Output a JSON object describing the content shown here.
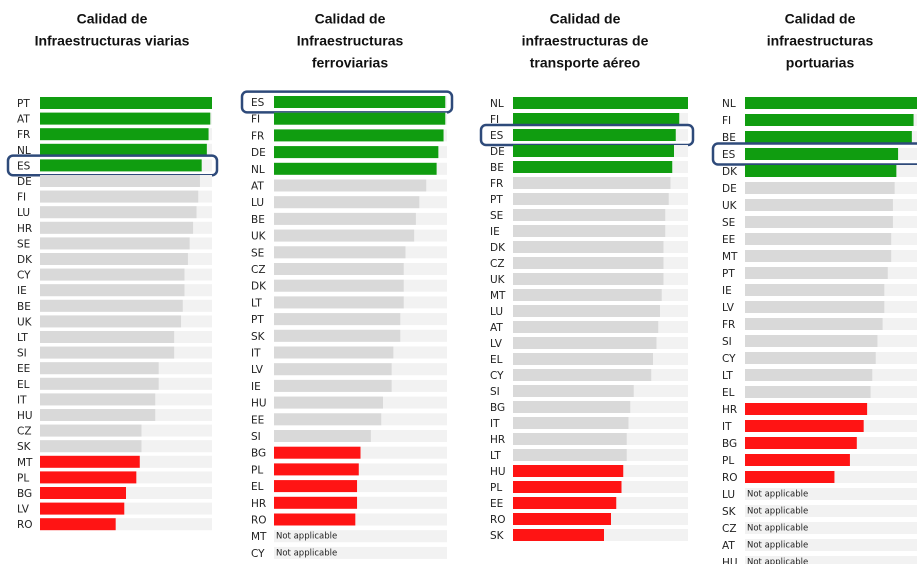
{
  "chart_data": [
    {
      "type": "bar",
      "orientation": "horizontal",
      "title": [
        "Calidad de",
        "Infraestructuras viarias"
      ],
      "categories": [
        "PT",
        "AT",
        "FR",
        "NL",
        "ES",
        "DE",
        "FI",
        "LU",
        "HR",
        "SE",
        "DK",
        "CY",
        "IE",
        "BE",
        "UK",
        "LT",
        "SI",
        "EE",
        "EL",
        "IT",
        "HU",
        "CZ",
        "SK",
        "MT",
        "PL",
        "BG",
        "LV",
        "RO"
      ],
      "values": [
        100,
        99,
        98,
        97,
        94,
        93,
        92,
        91,
        89,
        87,
        86,
        84,
        84,
        83,
        82,
        78,
        78,
        69,
        69,
        67,
        67,
        59,
        59,
        58,
        56,
        50,
        49,
        44
      ],
      "colors": [
        "#109d10",
        "#109d10",
        "#109d10",
        "#109d10",
        "#109d10",
        "#d9d9d9",
        "#d9d9d9",
        "#d9d9d9",
        "#d9d9d9",
        "#d9d9d9",
        "#d9d9d9",
        "#d9d9d9",
        "#d9d9d9",
        "#d9d9d9",
        "#d9d9d9",
        "#d9d9d9",
        "#d9d9d9",
        "#d9d9d9",
        "#d9d9d9",
        "#d9d9d9",
        "#d9d9d9",
        "#d9d9d9",
        "#d9d9d9",
        "#ff1414",
        "#ff1414",
        "#ff1414",
        "#ff1414",
        "#ff1414"
      ],
      "xlim": [
        0,
        100
      ],
      "highlight": "ES"
    },
    {
      "type": "bar",
      "orientation": "horizontal",
      "title": [
        "Calidad de",
        "Infraestructuras",
        "ferroviarias"
      ],
      "categories": [
        "ES",
        "FI",
        "FR",
        "DE",
        "NL",
        "AT",
        "LU",
        "BE",
        "UK",
        "SE",
        "CZ",
        "DK",
        "LT",
        "PT",
        "SK",
        "IT",
        "LV",
        "IE",
        "HU",
        "EE",
        "SI",
        "BG",
        "PL",
        "EL",
        "HR",
        "RO",
        "MT",
        "CY"
      ],
      "values": [
        99,
        99,
        98,
        95,
        94,
        88,
        84,
        82,
        81,
        76,
        75,
        75,
        75,
        73,
        73,
        69,
        68,
        68,
        63,
        62,
        56,
        50,
        49,
        48,
        48,
        47,
        null,
        null
      ],
      "value_labels": [
        null,
        null,
        null,
        null,
        null,
        null,
        null,
        null,
        null,
        null,
        null,
        null,
        null,
        null,
        null,
        null,
        null,
        null,
        null,
        null,
        null,
        null,
        null,
        null,
        null,
        null,
        "Not applicable",
        "Not applicable"
      ],
      "colors": [
        "#109d10",
        "#109d10",
        "#109d10",
        "#109d10",
        "#109d10",
        "#d9d9d9",
        "#d9d9d9",
        "#d9d9d9",
        "#d9d9d9",
        "#d9d9d9",
        "#d9d9d9",
        "#d9d9d9",
        "#d9d9d9",
        "#d9d9d9",
        "#d9d9d9",
        "#d9d9d9",
        "#d9d9d9",
        "#d9d9d9",
        "#d9d9d9",
        "#d9d9d9",
        "#d9d9d9",
        "#ff1414",
        "#ff1414",
        "#ff1414",
        "#ff1414",
        "#ff1414",
        "#d9d9d9",
        "#d9d9d9"
      ],
      "xlim": [
        0,
        100
      ],
      "highlight": "ES"
    },
    {
      "type": "bar",
      "orientation": "horizontal",
      "title": [
        "Calidad de",
        "infraestructuras de",
        "transporte aéreo"
      ],
      "categories": [
        "NL",
        "FI",
        "ES",
        "DE",
        "BE",
        "FR",
        "PT",
        "SE",
        "IE",
        "DK",
        "CZ",
        "UK",
        "MT",
        "LU",
        "AT",
        "LV",
        "EL",
        "CY",
        "SI",
        "BG",
        "IT",
        "HR",
        "LT",
        "HU",
        "PL",
        "EE",
        "RO",
        "SK"
      ],
      "values": [
        100,
        95,
        93,
        92,
        91,
        90,
        89,
        87,
        87,
        86,
        86,
        86,
        85,
        84,
        83,
        82,
        80,
        79,
        69,
        67,
        66,
        65,
        65,
        63,
        62,
        59,
        56,
        52
      ],
      "colors": [
        "#109d10",
        "#109d10",
        "#109d10",
        "#109d10",
        "#109d10",
        "#d9d9d9",
        "#d9d9d9",
        "#d9d9d9",
        "#d9d9d9",
        "#d9d9d9",
        "#d9d9d9",
        "#d9d9d9",
        "#d9d9d9",
        "#d9d9d9",
        "#d9d9d9",
        "#d9d9d9",
        "#d9d9d9",
        "#d9d9d9",
        "#d9d9d9",
        "#d9d9d9",
        "#d9d9d9",
        "#d9d9d9",
        "#d9d9d9",
        "#ff1414",
        "#ff1414",
        "#ff1414",
        "#ff1414",
        "#ff1414"
      ],
      "xlim": [
        0,
        100
      ],
      "highlight": "ES"
    },
    {
      "type": "bar",
      "orientation": "horizontal",
      "title": [
        "Calidad de",
        "infraestructuras",
        "portuarias"
      ],
      "categories": [
        "NL",
        "FI",
        "BE",
        "ES",
        "DK",
        "DE",
        "UK",
        "SE",
        "EE",
        "MT",
        "PT",
        "IE",
        "LV",
        "FR",
        "SI",
        "CY",
        "LT",
        "EL",
        "HR",
        "IT",
        "BG",
        "PL",
        "RO",
        "LU",
        "SK",
        "CZ",
        "AT",
        "HU"
      ],
      "values": [
        100,
        98,
        97,
        89,
        88,
        87,
        86,
        86,
        85,
        85,
        83,
        81,
        81,
        80,
        77,
        76,
        74,
        73,
        71,
        69,
        65,
        61,
        52,
        null,
        null,
        null,
        null,
        null
      ],
      "value_labels": [
        null,
        null,
        null,
        null,
        null,
        null,
        null,
        null,
        null,
        null,
        null,
        null,
        null,
        null,
        null,
        null,
        null,
        null,
        null,
        null,
        null,
        null,
        null,
        "Not applicable",
        "Not applicable",
        "Not applicable",
        "Not applicable",
        "Not applicable"
      ],
      "colors": [
        "#109d10",
        "#109d10",
        "#109d10",
        "#109d10",
        "#109d10",
        "#d9d9d9",
        "#d9d9d9",
        "#d9d9d9",
        "#d9d9d9",
        "#d9d9d9",
        "#d9d9d9",
        "#d9d9d9",
        "#d9d9d9",
        "#d9d9d9",
        "#d9d9d9",
        "#d9d9d9",
        "#d9d9d9",
        "#d9d9d9",
        "#ff1414",
        "#ff1414",
        "#ff1414",
        "#ff1414",
        "#ff1414",
        "#d9d9d9",
        "#d9d9d9",
        "#d9d9d9",
        "#d9d9d9",
        "#d9d9d9"
      ],
      "xlim": [
        0,
        100
      ],
      "highlight": "ES"
    }
  ]
}
